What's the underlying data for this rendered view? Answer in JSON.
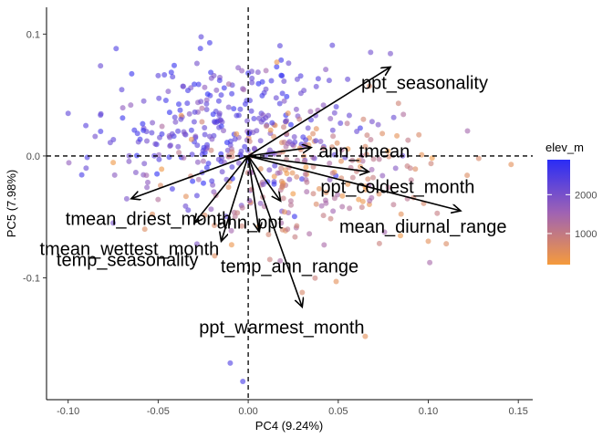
{
  "chart_data": {
    "type": "scatter",
    "subtype": "pca-biplot",
    "title": "",
    "xlabel": "PC4 (9.24%)",
    "ylabel": "PC5 (7.98%)",
    "xlim": [
      -0.112,
      0.158
    ],
    "ylim": [
      -0.2,
      0.122
    ],
    "xticks": [
      -0.1,
      -0.05,
      0.0,
      0.05,
      0.1,
      0.15
    ],
    "xtick_labels": [
      "-0.10",
      "-0.05",
      "0.00",
      "0.05",
      "0.10",
      "0.15"
    ],
    "yticks": [
      -0.1,
      0.0,
      0.1
    ],
    "ytick_labels": [
      "-0.1",
      "0.0",
      "0.1"
    ],
    "grid": false,
    "reference_lines": {
      "x": 0,
      "y": 0,
      "style": "dashed"
    },
    "color_scale": {
      "title": "elev_m",
      "breaks": [
        1000,
        2000
      ],
      "break_labels": [
        "1000",
        "2000"
      ],
      "low_value": 200,
      "high_value": 2900,
      "low_color": "#f59a3c",
      "mid_color": "#9e62b4",
      "high_color": "#2a2cf6"
    },
    "point_opacity": 0.6,
    "legend_position": "right",
    "loadings": [
      {
        "name": "ppt_seasonality",
        "x": 0.079,
        "y": 0.073
      },
      {
        "name": "ann_tmean",
        "x": 0.035,
        "y": 0.007
      },
      {
        "name": "ppt_coldest_month",
        "x": 0.067,
        "y": -0.013
      },
      {
        "name": "mean_diurnal_range",
        "x": 0.118,
        "y": -0.045
      },
      {
        "name": "ann_ppt",
        "x": 0.018,
        "y": -0.037
      },
      {
        "name": "temp_ann_range",
        "x": 0.006,
        "y": -0.062
      },
      {
        "name": "ppt_warmest_month",
        "x": 0.03,
        "y": -0.124
      },
      {
        "name": "tmean_driest_month",
        "x": -0.065,
        "y": -0.035
      },
      {
        "name": "tmean_wettest_month",
        "x": -0.015,
        "y": -0.07
      },
      {
        "name": "temp_seasonality",
        "x": -0.03,
        "y": -0.055
      }
    ],
    "point_sample": [
      {
        "x": -0.1,
        "y": 0.035,
        "elev": 2300
      },
      {
        "x": -0.082,
        "y": 0.074,
        "elev": 2200
      },
      {
        "x": -0.058,
        "y": 0.045,
        "elev": 2100
      },
      {
        "x": -0.042,
        "y": 0.065,
        "elev": 2400
      },
      {
        "x": -0.03,
        "y": 0.028,
        "elev": 2300
      },
      {
        "x": -0.015,
        "y": 0.05,
        "elev": 2500
      },
      {
        "x": 0.0,
        "y": 0.068,
        "elev": 2700
      },
      {
        "x": 0.02,
        "y": 0.045,
        "elev": 1900
      },
      {
        "x": 0.045,
        "y": 0.062,
        "elev": 2300
      },
      {
        "x": 0.068,
        "y": 0.085,
        "elev": 2100
      },
      {
        "x": 0.079,
        "y": 0.084,
        "elev": 2000
      },
      {
        "x": 0.052,
        "y": 0.005,
        "elev": 1300
      },
      {
        "x": 0.09,
        "y": -0.01,
        "elev": 1000
      },
      {
        "x": 0.146,
        "y": -0.007,
        "elev": 500
      },
      {
        "x": 0.128,
        "y": -0.002,
        "elev": 700
      },
      {
        "x": 0.11,
        "y": -0.072,
        "elev": 600
      },
      {
        "x": 0.1,
        "y": -0.07,
        "elev": 500
      },
      {
        "x": 0.065,
        "y": -0.148,
        "elev": 500
      },
      {
        "x": 0.03,
        "y": -0.112,
        "elev": 700
      },
      {
        "x": 0.012,
        "y": -0.085,
        "elev": 900
      },
      {
        "x": -0.01,
        "y": -0.17,
        "elev": 2500
      },
      {
        "x": -0.003,
        "y": -0.185,
        "elev": 2600
      },
      {
        "x": -0.075,
        "y": -0.055,
        "elev": 2000
      },
      {
        "x": -0.09,
        "y": -0.01,
        "elev": 2200
      },
      {
        "x": -0.12,
        "y": 0.0,
        "elev": 2000
      }
    ]
  }
}
